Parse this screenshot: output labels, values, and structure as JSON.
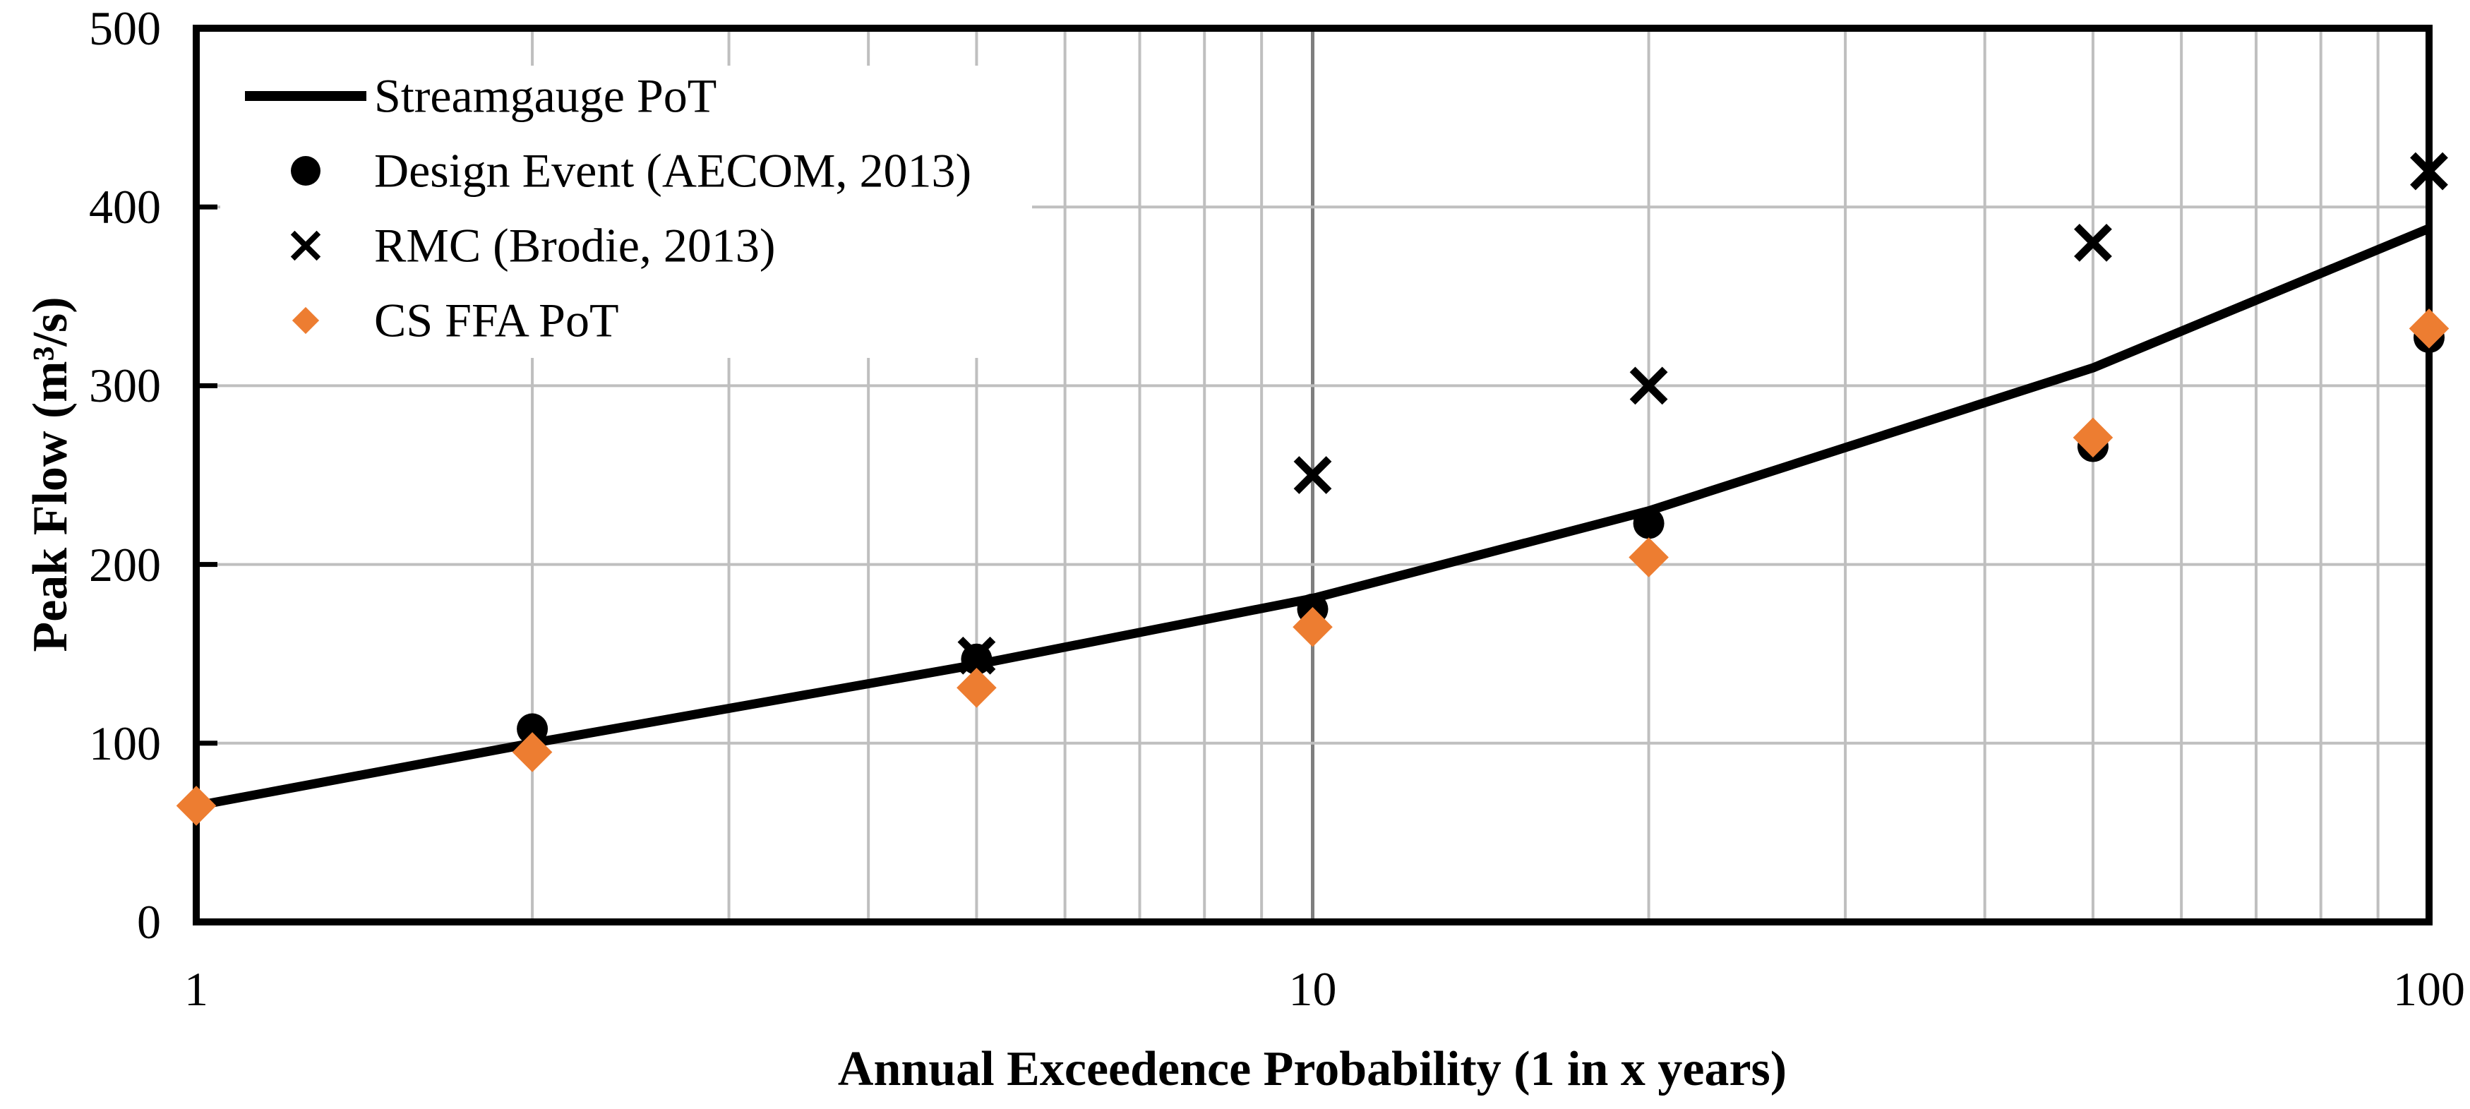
{
  "figure": {
    "background": "#ffffff",
    "colors": {
      "series_black": "#000000",
      "series_orange": "#ED7D31",
      "minor_gridline": "#BFBFBF",
      "major_gridline": "#7F7F7F",
      "spine": "#000000"
    },
    "legend": [
      {
        "label": "Streamgauge PoT",
        "swatch": "line",
        "color": "#000000"
      },
      {
        "label": "Design Event (AECOM, 2013)",
        "swatch": "circle",
        "color": "#000000"
      },
      {
        "label": "RMC (Brodie, 2013)",
        "swatch": "x",
        "color": "#000000"
      },
      {
        "label": "CS FFA PoT",
        "swatch": "diamond",
        "color": "#ED7D31"
      }
    ]
  },
  "chart_data": {
    "type": "line+scatter",
    "title": "",
    "xlabel": "Annual Exceedence Probability (1 in x years)",
    "ylabel": "Peak Flow (m³/s)",
    "x_scale": "log",
    "xlim": [
      1,
      100
    ],
    "ylim": [
      0,
      500
    ],
    "grid": true,
    "legend_position": "top-left-inside",
    "x_ticks": [
      1,
      10,
      100
    ],
    "y_ticks": [
      0,
      100,
      200,
      300,
      400,
      500
    ],
    "x_minor_gridlines": [
      2,
      3,
      4,
      5,
      6,
      7,
      8,
      9,
      20,
      30,
      40,
      50,
      60,
      70,
      80,
      90
    ],
    "x_major_gridlines": [
      10
    ],
    "series": [
      {
        "name": "Streamgauge PoT",
        "type": "line",
        "color": "#000000",
        "x": [
          1,
          2,
          5,
          10,
          20,
          50,
          100
        ],
        "y": [
          65,
          100,
          144,
          181,
          230,
          310,
          388
        ]
      },
      {
        "name": "Design Event (AECOM, 2013)",
        "type": "scatter",
        "marker": "circle",
        "color": "#000000",
        "x": [
          2,
          5,
          10,
          20,
          50,
          100
        ],
        "y": [
          108,
          147,
          175,
          223,
          266,
          327
        ]
      },
      {
        "name": "RMC (Brodie, 2013)",
        "type": "scatter",
        "marker": "x",
        "color": "#000000",
        "x": [
          5,
          10,
          20,
          50,
          100
        ],
        "y": [
          149,
          250,
          300,
          380,
          420
        ]
      },
      {
        "name": "CS FFA PoT",
        "type": "scatter",
        "marker": "diamond",
        "color": "#ED7D31",
        "x": [
          1,
          2,
          5,
          10,
          20,
          50,
          100
        ],
        "y": [
          65,
          95,
          131,
          165,
          204,
          271,
          332
        ]
      }
    ]
  }
}
